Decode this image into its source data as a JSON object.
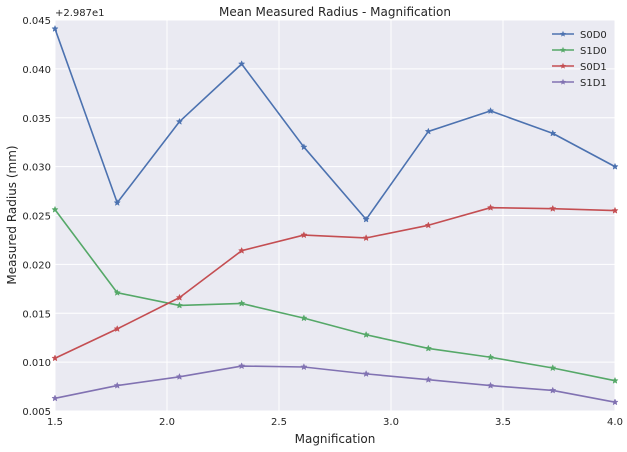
{
  "chart_data": {
    "type": "line",
    "title": "Mean Measured Radius - Magnification",
    "xlabel": "Magnification",
    "ylabel": "Measured Radius (mm)",
    "offset_label": "+2.987e1",
    "xlim": [
      1.5,
      4.0
    ],
    "ylim": [
      0.005,
      0.045
    ],
    "xticks": [
      "1.5",
      "2.0",
      "2.5",
      "3.0",
      "3.5",
      "4.0"
    ],
    "yticks": [
      "0.005",
      "0.010",
      "0.015",
      "0.020",
      "0.025",
      "0.030",
      "0.035",
      "0.040",
      "0.045"
    ],
    "grid": true,
    "legend_position": "top-right",
    "x": [
      1.5,
      1.7778,
      2.0556,
      2.3333,
      2.6111,
      2.8889,
      3.1667,
      3.4444,
      3.7222,
      4.0
    ],
    "series": [
      {
        "name": "S0D0",
        "color": "#4c72b0",
        "values": [
          0.0441,
          0.0263,
          0.0346,
          0.0405,
          0.032,
          0.0246,
          0.0336,
          0.0357,
          0.0334,
          0.03
        ]
      },
      {
        "name": "S1D0",
        "color": "#55a868",
        "values": [
          0.0256,
          0.0171,
          0.0158,
          0.016,
          0.0145,
          0.0128,
          0.0114,
          0.0105,
          0.0094,
          0.0081
        ]
      },
      {
        "name": "S0D1",
        "color": "#c44e52",
        "values": [
          0.0104,
          0.0134,
          0.0166,
          0.0214,
          0.023,
          0.0227,
          0.024,
          0.0258,
          0.0257,
          0.0255
        ]
      },
      {
        "name": "S1D1",
        "color": "#8172b2",
        "values": [
          0.0063,
          0.0076,
          0.0085,
          0.0096,
          0.0095,
          0.0088,
          0.0082,
          0.0076,
          0.0071,
          0.0059
        ]
      }
    ]
  }
}
